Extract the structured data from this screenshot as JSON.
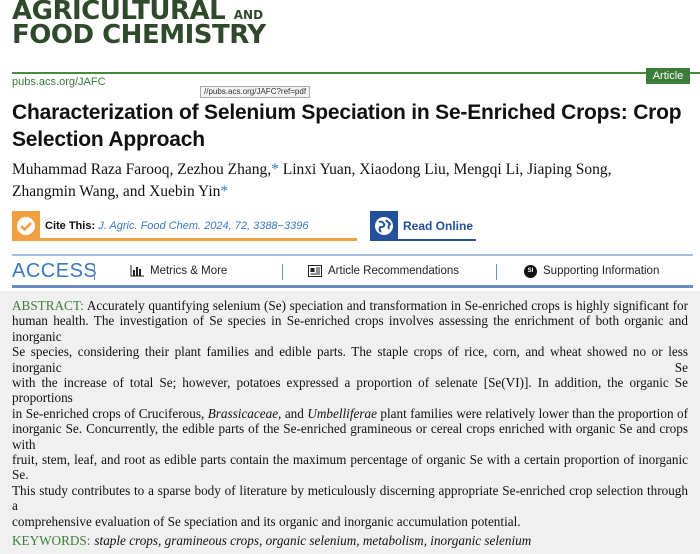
{
  "journal": {
    "logo_line1": "AGRICULTURAL",
    "logo_and": "AND",
    "logo_line2": "FOOD CHEMISTRY",
    "url": "pubs.acs.org/JAFC",
    "badge": "Article"
  },
  "title": "Characterization of Selenium Speciation in Se-Enriched Crops: Crop Selection Approach",
  "authors": {
    "line1": "Muhammad Raza Farooq, Zezhou Zhang,",
    "line1b": " Linxi Yuan, Xiaodong Liu, Mengqi Li, Jiaping Song,",
    "line2": "Zhangmin Wang, and Xuebin Yin",
    "star": "*"
  },
  "tooltip": "//pubs.acs.org/JAFC?ref=pdf",
  "cite": {
    "label": "Cite This:",
    "ref": "J. Agric. Food Chem. 2024, 72, 3388−3396"
  },
  "read_online": "Read Online",
  "access": {
    "label": "ACCESS",
    "metrics": "Metrics & More",
    "recs": "Article Recommendations",
    "si": "Supporting Information",
    "si_icon": "SI"
  },
  "abstract": {
    "label": "ABSTRACT:",
    "lines": [
      "Accurately quantifying selenium (Se) speciation and transformation in Se-enriched crops is highly significant for",
      "human health. The investigation of Se species in Se-enriched crops involves assessing the enrichment of both organic and inorganic",
      "Se species, considering their plant families and edible parts. The staple crops of rice, corn, and wheat showed no or less inorganic Se",
      "with the increase of total Se; however, potatoes expressed a proportion of selenate [Se(VI)]. In addition, the organic Se proportions",
      "in Se-enriched crops of Cruciferous,",
      "Brassicaceae,",
      " and ",
      "Umbelliferae",
      " plant families were relatively lower than the proportion of",
      "inorganic Se. Concurrently, the edible parts of the Se-enriched gramineous or cereal crops enriched with organic Se and crops with",
      "fruit, stem, leaf, and root as edible parts contain the maximum percentage of organic Se with a certain proportion of inorganic Se.",
      "This study contributes to a sparse body of literature by meticulously discerning appropriate Se-enriched crop selection through a",
      "comprehensive evaluation of Se speciation and its organic and inorganic accumulation potential."
    ]
  },
  "keywords": {
    "label": "KEYWORDS:",
    "text": "staple crops, gramineous crops, organic selenium, metabolism, inorganic selenium"
  },
  "colors": {
    "green": "#3d7d3a",
    "blue": "#3a78c0",
    "orange": "#f0a040",
    "navy": "#22509a"
  }
}
